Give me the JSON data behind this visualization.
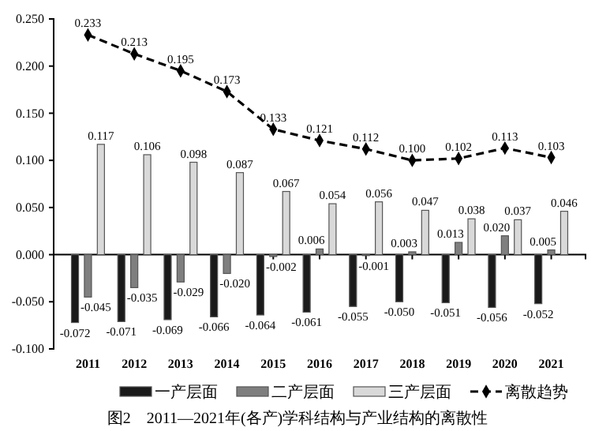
{
  "chart_data": {
    "type": "bar",
    "categories": [
      "2011",
      "2012",
      "2013",
      "2014",
      "2015",
      "2016",
      "2017",
      "2018",
      "2019",
      "2020",
      "2021"
    ],
    "series": [
      {
        "name": "一产层面",
        "color": "#1a1a1a",
        "values": [
          -0.072,
          -0.071,
          -0.069,
          -0.066,
          -0.064,
          -0.061,
          -0.055,
          -0.05,
          -0.051,
          -0.056,
          -0.052
        ],
        "value_labels": [
          "-0.072",
          "-0.071",
          "-0.069",
          "-0.066",
          "-0.064",
          "-0.061",
          "-0.055",
          "-0.050",
          "-0.051",
          "-0.056",
          "-0.052"
        ]
      },
      {
        "name": "二产层面",
        "color": "#7f7f7f",
        "values": [
          -0.045,
          -0.035,
          -0.029,
          -0.02,
          -0.002,
          0.006,
          -0.001,
          0.003,
          0.013,
          0.02,
          0.005
        ],
        "value_labels": [
          "-0.045",
          "-0.035",
          "-0.029",
          "-0.020",
          "-0.002",
          "0.006",
          "-0.001",
          "0.003",
          "0.013",
          "0.020",
          "0.005"
        ]
      },
      {
        "name": "三产层面",
        "color": "#d9d9d9",
        "values": [
          0.117,
          0.106,
          0.098,
          0.087,
          0.067,
          0.054,
          0.056,
          0.047,
          0.038,
          0.037,
          0.046
        ],
        "value_labels": [
          "0.117",
          "0.106",
          "0.098",
          "0.087",
          "0.067",
          "0.054",
          "0.056",
          "0.047",
          "0.038",
          "0.037",
          "0.046"
        ]
      },
      {
        "name": "离散趋势",
        "type": "line",
        "color": "#000000",
        "line_style": "dashed",
        "marker": "diamond",
        "values": [
          0.233,
          0.213,
          0.195,
          0.173,
          0.133,
          0.121,
          0.112,
          0.1,
          0.102,
          0.113,
          0.103
        ],
        "value_labels": [
          "0.233",
          "0.213",
          "0.195",
          "0.173",
          "0.133",
          "0.121",
          "0.112",
          "0.100",
          "0.102",
          "0.113",
          "0.103"
        ]
      }
    ],
    "ylim": [
      -0.1,
      0.25
    ],
    "yticks": [
      {
        "value": -0.1,
        "label": "-0.100"
      },
      {
        "value": -0.05,
        "label": "-0.050"
      },
      {
        "value": 0,
        "label": "0.000"
      },
      {
        "value": 0.05,
        "label": "0.050"
      },
      {
        "value": 0.1,
        "label": "0.100"
      },
      {
        "value": 0.15,
        "label": "0.150"
      },
      {
        "value": 0.2,
        "label": "0.200"
      },
      {
        "value": 0.25,
        "label": "0.250"
      }
    ],
    "grid": false,
    "legend": "bottom",
    "annotations": [
      "图2　2011—2021年(各产)学科结构与产业结构的离散性"
    ]
  }
}
